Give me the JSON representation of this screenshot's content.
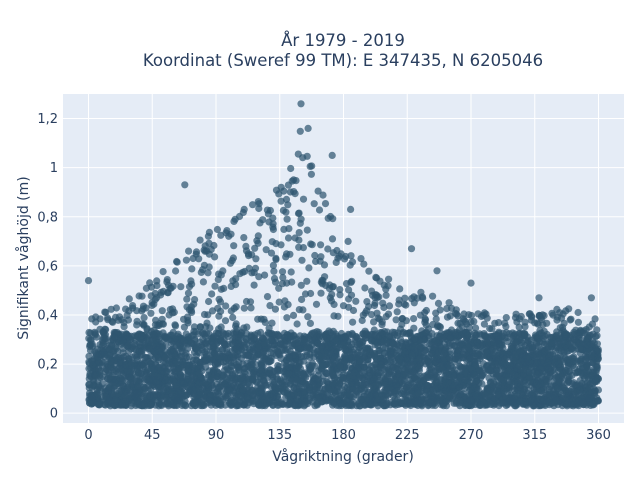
{
  "chart_data": {
    "type": "scatter",
    "title": "År 1979 - 2019",
    "subtitle": "Koordinat (Sweref 99 TM): E 347435, N 6205046",
    "xlabel": "Vågriktning (grader)",
    "ylabel": "Signifikant våghöjd (m)",
    "xlim": [
      -18,
      378
    ],
    "ylim": [
      -0.04,
      1.3
    ],
    "xticks": [
      0,
      45,
      90,
      135,
      180,
      225,
      270,
      315,
      360
    ],
    "xtick_labels": [
      "0",
      "45",
      "90",
      "135",
      "180",
      "225",
      "270",
      "315",
      "360"
    ],
    "yticks": [
      0,
      0.2,
      0.4,
      0.6,
      0.8,
      1,
      1.2
    ],
    "ytick_labels": [
      "0",
      "0,2",
      "0,4",
      "0,6",
      "0,8",
      "1",
      "1,2"
    ],
    "grid": true,
    "marker_color": "#2f5670",
    "background_color": "#e5ecf6",
    "density_note": "Dense cloud of several thousand points spanning direction 0–360 degrees; heights mostly 0.03–0.35 m with upper envelope peaking near 150 degrees.",
    "envelope": {
      "x": [
        0,
        20,
        45,
        70,
        90,
        110,
        130,
        145,
        150,
        160,
        170,
        180,
        200,
        225,
        250,
        270,
        290,
        315,
        340,
        360
      ],
      "y_max": [
        0.42,
        0.47,
        0.58,
        0.72,
        0.83,
        0.92,
        1.0,
        1.1,
        1.26,
        1.05,
        0.88,
        0.78,
        0.62,
        0.55,
        0.5,
        0.46,
        0.42,
        0.45,
        0.46,
        0.42
      ]
    },
    "outliers": [
      {
        "x": 0,
        "y": 0.54
      },
      {
        "x": 68,
        "y": 0.93
      },
      {
        "x": 150,
        "y": 1.26
      },
      {
        "x": 155,
        "y": 1.16
      },
      {
        "x": 172,
        "y": 1.05
      },
      {
        "x": 185,
        "y": 0.83
      },
      {
        "x": 228,
        "y": 0.67
      },
      {
        "x": 246,
        "y": 0.58
      },
      {
        "x": 270,
        "y": 0.53
      },
      {
        "x": 318,
        "y": 0.47
      },
      {
        "x": 355,
        "y": 0.47
      }
    ]
  }
}
